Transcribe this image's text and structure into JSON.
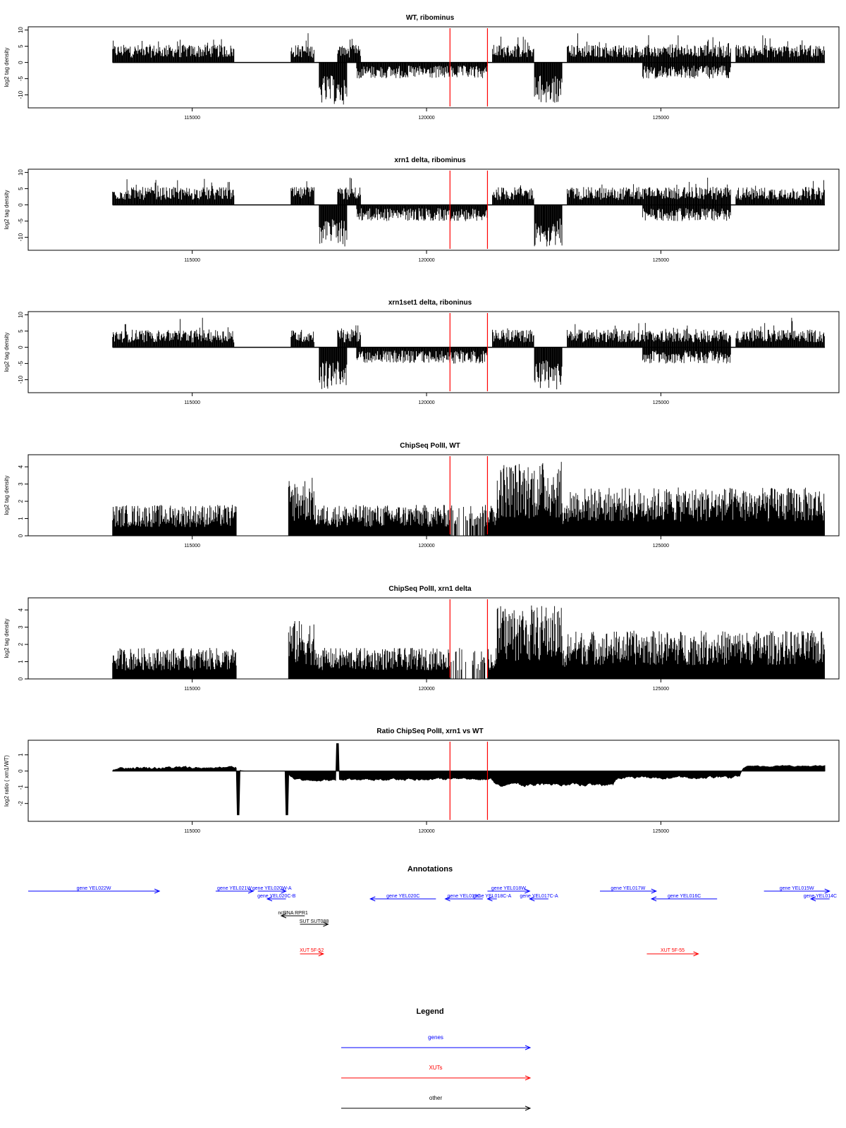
{
  "chart_data": [
    {
      "type": "bar",
      "title": "WT, ribominus",
      "ylabel": "log2 tag density",
      "xlim": [
        111500,
        128800
      ],
      "ylim": [
        -14,
        11
      ],
      "yticks": [
        "10",
        "5",
        "0",
        "-5",
        "-10"
      ],
      "xticks": [
        "115000",
        "120000",
        "125000"
      ],
      "vlines": [
        120500,
        121300
      ],
      "series": [
        {
          "values": [
            [
              113300,
              3.5
            ],
            [
              115800,
              3.5
            ],
            [
              117300,
              3.0
            ],
            [
              117500,
              4.5
            ],
            [
              117800,
              -12
            ],
            [
              118300,
              -10
            ],
            [
              118400,
              2.5
            ],
            [
              119000,
              -4
            ],
            [
              120500,
              -4
            ],
            [
              121300,
              -4
            ],
            [
              121500,
              3
            ],
            [
              122200,
              2.5
            ],
            [
              122300,
              -10
            ],
            [
              122800,
              -9
            ],
            [
              123000,
              1
            ],
            [
              123300,
              3.5
            ],
            [
              124500,
              3.5
            ],
            [
              124600,
              -4
            ],
            [
              126500,
              -4
            ],
            [
              126600,
              3.5
            ],
            [
              128400,
              4
            ]
          ]
        }
      ]
    },
    {
      "type": "bar",
      "title": "xrn1 delta, ribominus",
      "ylabel": "log2 tag density",
      "xlim": [
        111500,
        128800
      ],
      "ylim": [
        -14,
        11
      ],
      "yticks": [
        "10",
        "5",
        "0",
        "-5",
        "-10"
      ],
      "xticks": [
        "115000",
        "120000",
        "125000"
      ],
      "vlines": [
        120500,
        121300
      ]
    },
    {
      "type": "bar",
      "title": "xrn1set1 delta, riboninus",
      "ylabel": "log2 tag density",
      "xlim": [
        111500,
        128800
      ],
      "ylim": [
        -14,
        11
      ],
      "yticks": [
        "10",
        "5",
        "0",
        "-5",
        "-10"
      ],
      "xticks": [
        "115000",
        "120000",
        "125000"
      ],
      "vlines": [
        120500,
        121300
      ]
    },
    {
      "type": "bar",
      "title": "ChipSeq PolII, WT",
      "ylabel": "log2 tag density",
      "xlim": [
        111500,
        128800
      ],
      "ylim": [
        0,
        4.7
      ],
      "yticks": [
        "4",
        "3",
        "2",
        "1",
        "0"
      ],
      "xticks": [
        "115000",
        "120000",
        "125000"
      ],
      "vlines": [
        120500,
        121300
      ]
    },
    {
      "type": "bar",
      "title": "ChipSeq PolII, xrn1 delta",
      "ylabel": "log2 tag density",
      "xlim": [
        111500,
        128800
      ],
      "ylim": [
        0,
        4.7
      ],
      "yticks": [
        "4",
        "3",
        "2",
        "1",
        "0"
      ],
      "xticks": [
        "115000",
        "120000",
        "125000"
      ],
      "vlines": [
        120500,
        121300
      ]
    },
    {
      "type": "area",
      "title": "Ratio ChipSeq PolII, xrn1 vs WT",
      "ylabel": "log2 ratio ( xrn1/WT)",
      "xlim": [
        111500,
        128800
      ],
      "ylim": [
        -3.1,
        1.9
      ],
      "yticks": [
        "1",
        "0",
        "-1",
        "-2"
      ],
      "xticks": [
        "115000",
        "120000",
        "125000"
      ],
      "vlines": [
        120500,
        121300
      ]
    }
  ],
  "annotations": {
    "title": "Annotations",
    "genes": [
      {
        "label": "gene YEL022W",
        "x1": 111500,
        "x2": 114300,
        "strand": "+",
        "row": 0
      },
      {
        "label": "gene YEL021W",
        "x1": 115500,
        "x2": 116300,
        "strand": "+",
        "row": 0
      },
      {
        "label": "gene YEL020W-A",
        "x1": 116400,
        "x2": 117000,
        "strand": "+",
        "row": 0
      },
      {
        "label": "gene YEL020C-B",
        "x1": 116600,
        "x2": 117000,
        "strand": "-",
        "row": 1
      },
      {
        "label": "gene YEL020C",
        "x1": 118800,
        "x2": 120200,
        "strand": "-",
        "row": 1
      },
      {
        "label": "gene YEL019C",
        "x1": 120400,
        "x2": 121200,
        "strand": "-",
        "row": 1
      },
      {
        "label": "gene YEL018W",
        "x1": 121300,
        "x2": 122200,
        "strand": "+",
        "row": 0
      },
      {
        "label": "gene YEL018C-A",
        "x1": 121300,
        "x2": 121500,
        "strand": "-",
        "row": 1
      },
      {
        "label": "gene YEL017C-A",
        "x1": 122200,
        "x2": 122600,
        "strand": "-",
        "row": 1
      },
      {
        "label": "gene YEL017W",
        "x1": 123700,
        "x2": 124900,
        "strand": "+",
        "row": 0
      },
      {
        "label": "gene YEL016C",
        "x1": 124800,
        "x2": 126200,
        "strand": "-",
        "row": 1
      },
      {
        "label": "gene YEL015W",
        "x1": 127200,
        "x2": 128600,
        "strand": "+",
        "row": 0
      },
      {
        "label": "gene YEL014C",
        "x1": 128200,
        "x2": 128600,
        "strand": "-",
        "row": 1
      }
    ],
    "others": [
      {
        "label": "ncRNA RPR1",
        "x1": 116900,
        "x2": 117400,
        "strand": "-",
        "row": 0
      },
      {
        "label": "SUT SUT088",
        "x1": 117300,
        "x2": 117900,
        "strand": "+",
        "row": 1
      }
    ],
    "xuts": [
      {
        "label": "XUT 5F-52",
        "x1": 117300,
        "x2": 117800,
        "strand": "+"
      },
      {
        "label": "XUT 5F-55",
        "x1": 124700,
        "x2": 125800,
        "strand": "+"
      }
    ]
  },
  "legend": {
    "title": "Legend",
    "items": [
      {
        "label": "genes",
        "color": "#0000ff"
      },
      {
        "label": "XUTs",
        "color": "#ff0000"
      },
      {
        "label": "other",
        "color": "#000000"
      }
    ]
  },
  "colors": {
    "gene": "#0000ff",
    "xut": "#ff0000",
    "other": "#000000",
    "vline": "#ff0000",
    "data": "#000000"
  }
}
